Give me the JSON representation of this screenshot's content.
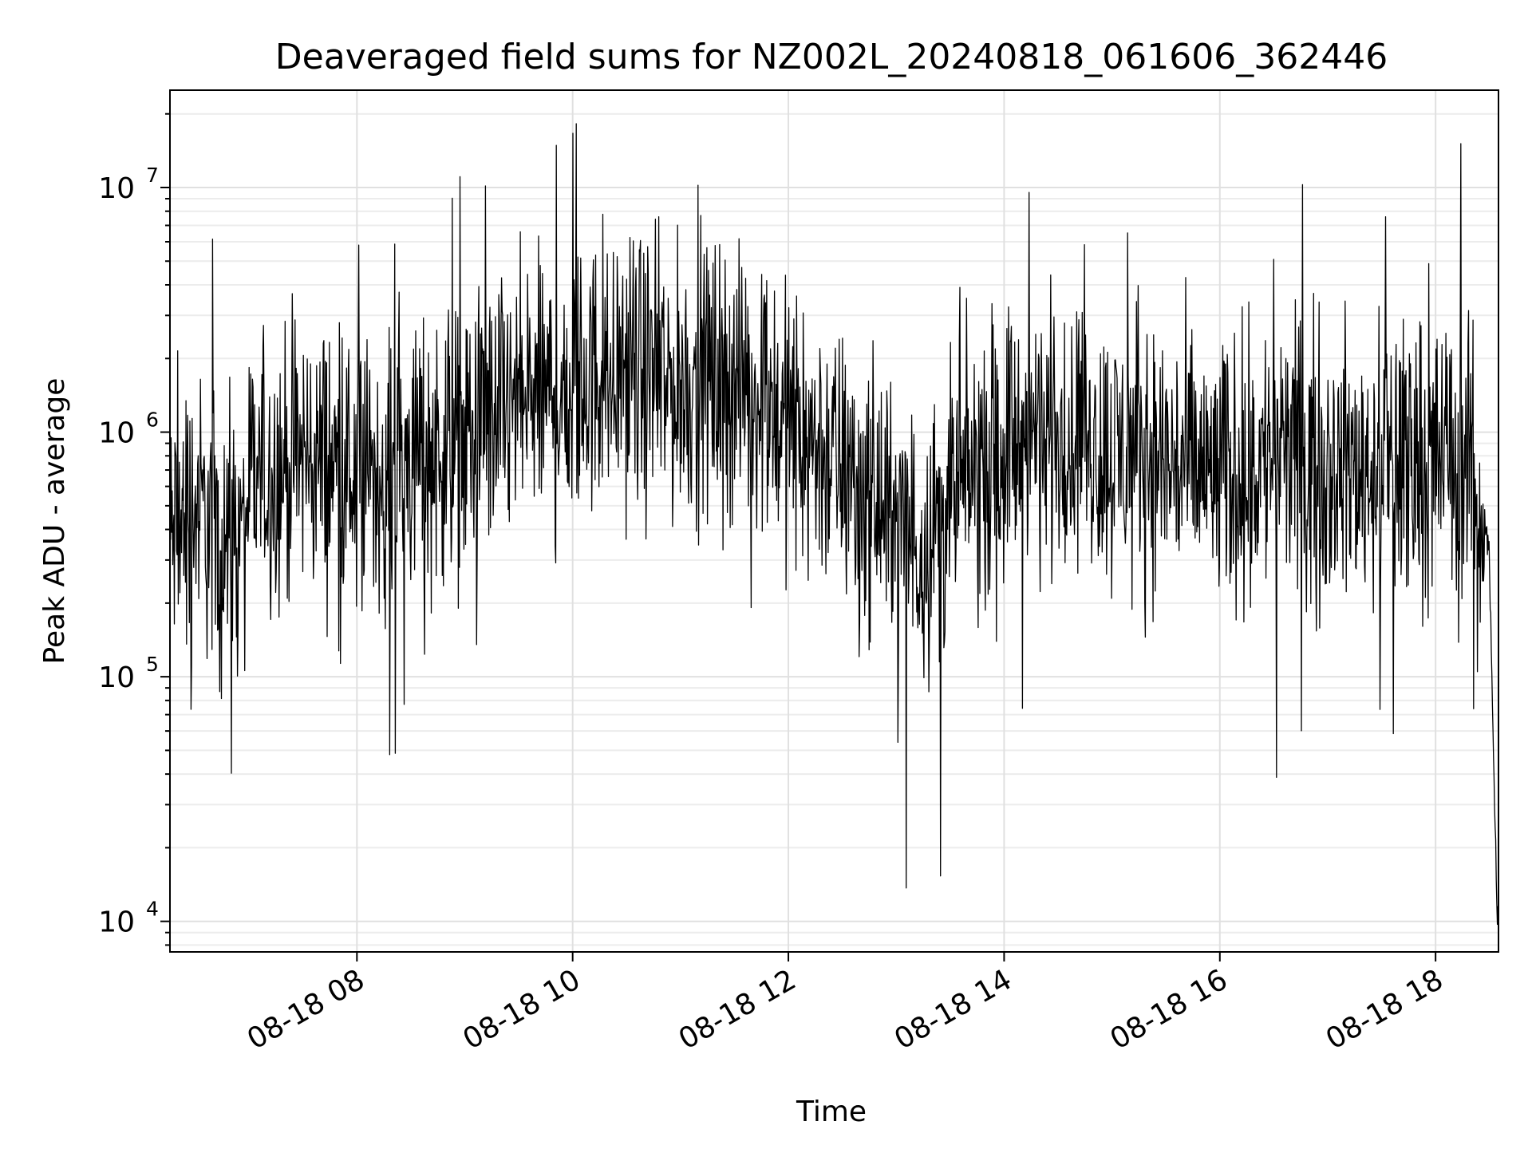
{
  "chart_data": {
    "type": "line",
    "title": "Deaveraged field sums for NZ002L_20240818_061606_362446",
    "xlabel": "Time",
    "ylabel": "Peak ADU - average",
    "yscale": "log",
    "xlim": [
      "2024-08-18 06:16",
      "2024-08-18 18:35"
    ],
    "ylim": [
      7500,
      25000000
    ],
    "grid": true,
    "legend": "none",
    "line_color": "#000000",
    "xticks": [
      {
        "value": "2024-08-18 08:00",
        "label": "08-18 08"
      },
      {
        "value": "2024-08-18 10:00",
        "label": "08-18 10"
      },
      {
        "value": "2024-08-18 12:00",
        "label": "08-18 12"
      },
      {
        "value": "2024-08-18 14:00",
        "label": "08-18 14"
      },
      {
        "value": "2024-08-18 16:00",
        "label": "08-18 16"
      },
      {
        "value": "2024-08-18 18:00",
        "label": "08-18 18"
      }
    ],
    "yticks": [
      {
        "value": 10000,
        "base": "10",
        "exp": "4"
      },
      {
        "value": 100000,
        "base": "10",
        "exp": "5"
      },
      {
        "value": 1000000,
        "base": "10",
        "exp": "6"
      },
      {
        "value": 10000000,
        "base": "10",
        "exp": "7"
      }
    ],
    "series": [
      {
        "x": [
          "2024-08-18 06:16",
          "2024-08-18 06:30",
          "2024-08-18 06:40",
          "2024-08-18 06:50",
          "2024-08-18 07:00",
          "2024-08-18 07:15",
          "2024-08-18 07:30",
          "2024-08-18 07:45",
          "2024-08-18 08:00",
          "2024-08-18 08:15",
          "2024-08-18 08:30",
          "2024-08-18 08:45",
          "2024-08-18 09:00",
          "2024-08-18 09:15",
          "2024-08-18 09:30",
          "2024-08-18 09:45",
          "2024-08-18 10:00",
          "2024-08-18 10:15",
          "2024-08-18 10:30",
          "2024-08-18 10:45",
          "2024-08-18 11:00",
          "2024-08-18 11:15",
          "2024-08-18 11:30",
          "2024-08-18 11:45",
          "2024-08-18 12:00",
          "2024-08-18 12:15",
          "2024-08-18 12:30",
          "2024-08-18 12:45",
          "2024-08-18 13:00",
          "2024-08-18 13:15",
          "2024-08-18 13:30",
          "2024-08-18 13:45",
          "2024-08-18 14:00",
          "2024-08-18 14:15",
          "2024-08-18 14:30",
          "2024-08-18 14:45",
          "2024-08-18 15:00",
          "2024-08-18 15:15",
          "2024-08-18 15:30",
          "2024-08-18 15:45",
          "2024-08-18 16:00",
          "2024-08-18 16:15",
          "2024-08-18 16:30",
          "2024-08-18 16:45",
          "2024-08-18 17:00",
          "2024-08-18 17:15",
          "2024-08-18 17:30",
          "2024-08-18 17:45",
          "2024-08-18 18:00",
          "2024-08-18 18:15",
          "2024-08-18 18:25",
          "2024-08-18 18:30",
          "2024-08-18 18:34"
        ],
        "y": [
          350000,
          500000,
          400000,
          300000,
          600000,
          700000,
          800000,
          750000,
          650000,
          700000,
          800000,
          850000,
          900000,
          1100000,
          1300000,
          1400000,
          1500000,
          1700000,
          1800000,
          1600000,
          1500000,
          1700000,
          1600000,
          1400000,
          1100000,
          900000,
          700000,
          550000,
          400000,
          350000,
          500000,
          700000,
          900000,
          950000,
          1000000,
          900000,
          800000,
          850000,
          750000,
          700000,
          650000,
          700000,
          800000,
          800000,
          750000,
          700000,
          750000,
          800000,
          850000,
          750000,
          600000,
          300000,
          12000
        ]
      }
    ]
  }
}
